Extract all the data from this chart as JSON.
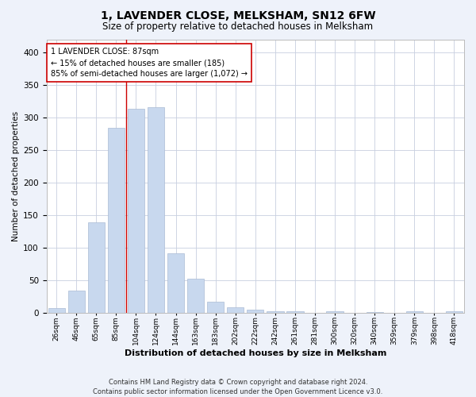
{
  "title": "1, LAVENDER CLOSE, MELKSHAM, SN12 6FW",
  "subtitle": "Size of property relative to detached houses in Melksham",
  "xlabel": "Distribution of detached houses by size in Melksham",
  "ylabel": "Number of detached properties",
  "categories": [
    "26sqm",
    "46sqm",
    "65sqm",
    "85sqm",
    "104sqm",
    "124sqm",
    "144sqm",
    "163sqm",
    "183sqm",
    "202sqm",
    "222sqm",
    "242sqm",
    "261sqm",
    "281sqm",
    "300sqm",
    "320sqm",
    "340sqm",
    "359sqm",
    "379sqm",
    "398sqm",
    "418sqm"
  ],
  "values": [
    7,
    34,
    139,
    285,
    314,
    316,
    91,
    52,
    17,
    8,
    5,
    2,
    2,
    0,
    2,
    0,
    1,
    0,
    2,
    0,
    2
  ],
  "bar_color": "#c8d8ee",
  "bar_edge_color": "#aabbd4",
  "vline_color": "#cc0000",
  "annotation_text": "1 LAVENDER CLOSE: 87sqm\n← 15% of detached houses are smaller (185)\n85% of semi-detached houses are larger (1,072) →",
  "annotation_box_color": "white",
  "annotation_box_edge": "#cc0000",
  "ylim": [
    0,
    420
  ],
  "yticks": [
    0,
    50,
    100,
    150,
    200,
    250,
    300,
    350,
    400
  ],
  "footer": "Contains HM Land Registry data © Crown copyright and database right 2024.\nContains public sector information licensed under the Open Government Licence v3.0.",
  "background_color": "#eef2fa",
  "plot_bg_color": "#ffffff",
  "grid_color": "#c8cfdf",
  "title_fontsize": 10,
  "subtitle_fontsize": 8.5,
  "ylabel_fontsize": 7.5,
  "xlabel_fontsize": 8,
  "footer_fontsize": 6,
  "annotation_fontsize": 7,
  "xtick_fontsize": 6.5
}
